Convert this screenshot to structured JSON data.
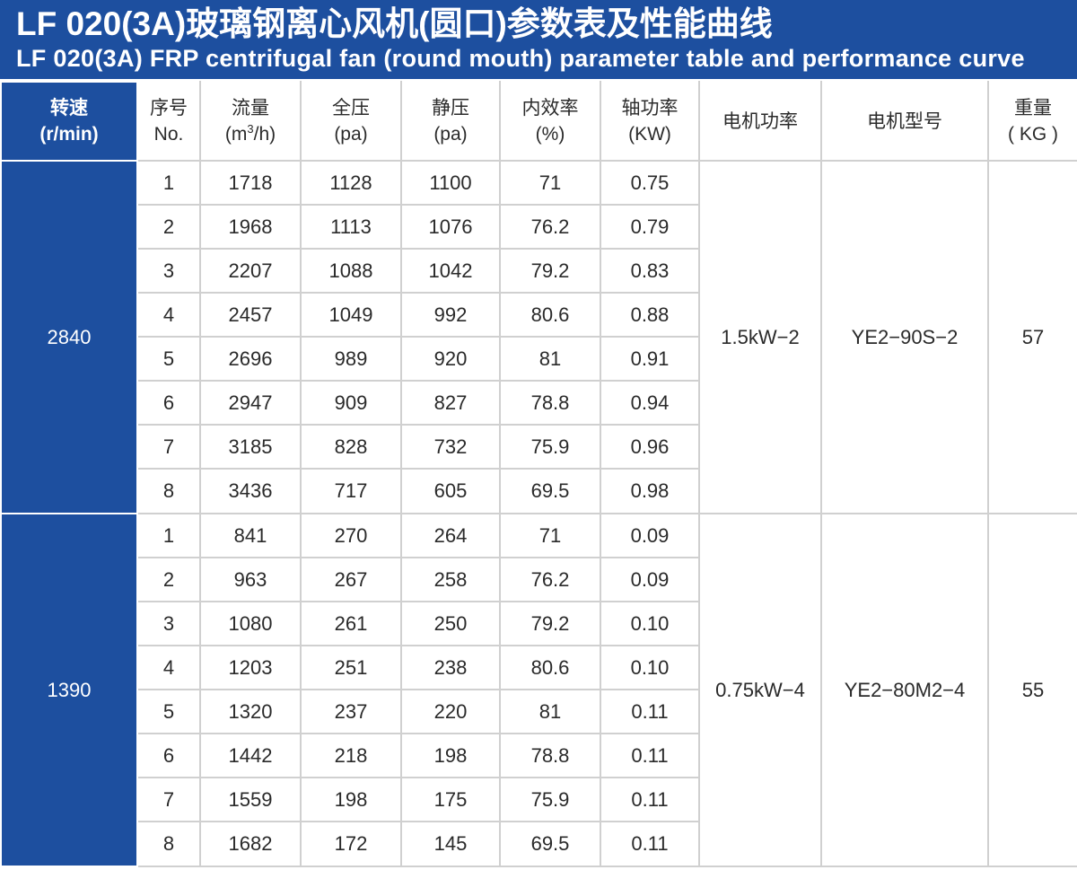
{
  "header": {
    "title_zh": "LF 020(3A)玻璃钢离心风机(圆口)参数表及性能曲线",
    "title_en": "LF 020(3A) FRP centrifugal fan (round mouth) parameter table and performance curve"
  },
  "columns": {
    "speed": {
      "zh": "转速",
      "unit": "(r/min)"
    },
    "no": {
      "zh": "序号",
      "unit": "No."
    },
    "flow": {
      "zh": "流量",
      "unit_pre": "(m",
      "unit_sup": "3",
      "unit_post": "/h)"
    },
    "total_pressure": {
      "zh": "全压",
      "unit": "(pa)"
    },
    "static_pressure": {
      "zh": "静压",
      "unit": "(pa)"
    },
    "efficiency": {
      "zh": "内效率",
      "unit": "(%)"
    },
    "shaft_power": {
      "zh": "轴功率",
      "unit": "(KW)"
    },
    "motor_power": {
      "zh": "电机功率"
    },
    "motor_model": {
      "zh": "电机型号"
    },
    "weight": {
      "zh": "重量",
      "unit": "( KG )"
    }
  },
  "groups": [
    {
      "speed": "2840",
      "motor_power": "1.5kW−2",
      "motor_model": "YE2−90S−2",
      "weight": "57",
      "rows": [
        {
          "no": "1",
          "flow": "1718",
          "total": "1128",
          "static": "1100",
          "eff": "71",
          "shaft": "0.75"
        },
        {
          "no": "2",
          "flow": "1968",
          "total": "1113",
          "static": "1076",
          "eff": "76.2",
          "shaft": "0.79"
        },
        {
          "no": "3",
          "flow": "2207",
          "total": "1088",
          "static": "1042",
          "eff": "79.2",
          "shaft": "0.83"
        },
        {
          "no": "4",
          "flow": "2457",
          "total": "1049",
          "static": "992",
          "eff": "80.6",
          "shaft": "0.88"
        },
        {
          "no": "5",
          "flow": "2696",
          "total": "989",
          "static": "920",
          "eff": "81",
          "shaft": "0.91"
        },
        {
          "no": "6",
          "flow": "2947",
          "total": "909",
          "static": "827",
          "eff": "78.8",
          "shaft": "0.94"
        },
        {
          "no": "7",
          "flow": "3185",
          "total": "828",
          "static": "732",
          "eff": "75.9",
          "shaft": "0.96"
        },
        {
          "no": "8",
          "flow": "3436",
          "total": "717",
          "static": "605",
          "eff": "69.5",
          "shaft": "0.98"
        }
      ]
    },
    {
      "speed": "1390",
      "motor_power": "0.75kW−4",
      "motor_model": "YE2−80M2−4",
      "weight": "55",
      "rows": [
        {
          "no": "1",
          "flow": "841",
          "total": "270",
          "static": "264",
          "eff": "71",
          "shaft": "0.09"
        },
        {
          "no": "2",
          "flow": "963",
          "total": "267",
          "static": "258",
          "eff": "76.2",
          "shaft": "0.09"
        },
        {
          "no": "3",
          "flow": "1080",
          "total": "261",
          "static": "250",
          "eff": "79.2",
          "shaft": "0.10"
        },
        {
          "no": "4",
          "flow": "1203",
          "total": "251",
          "static": "238",
          "eff": "80.6",
          "shaft": "0.10"
        },
        {
          "no": "5",
          "flow": "1320",
          "total": "237",
          "static": "220",
          "eff": "81",
          "shaft": "0.11"
        },
        {
          "no": "6",
          "flow": "1442",
          "total": "218",
          "static": "198",
          "eff": "78.8",
          "shaft": "0.11"
        },
        {
          "no": "7",
          "flow": "1559",
          "total": "198",
          "static": "175",
          "eff": "75.9",
          "shaft": "0.11"
        },
        {
          "no": "8",
          "flow": "1682",
          "total": "172",
          "static": "145",
          "eff": "69.5",
          "shaft": "0.11"
        }
      ]
    }
  ],
  "colors": {
    "brand_blue": "#1d4f9f",
    "grid": "#d0d0d0",
    "text": "#2a2a2a"
  }
}
